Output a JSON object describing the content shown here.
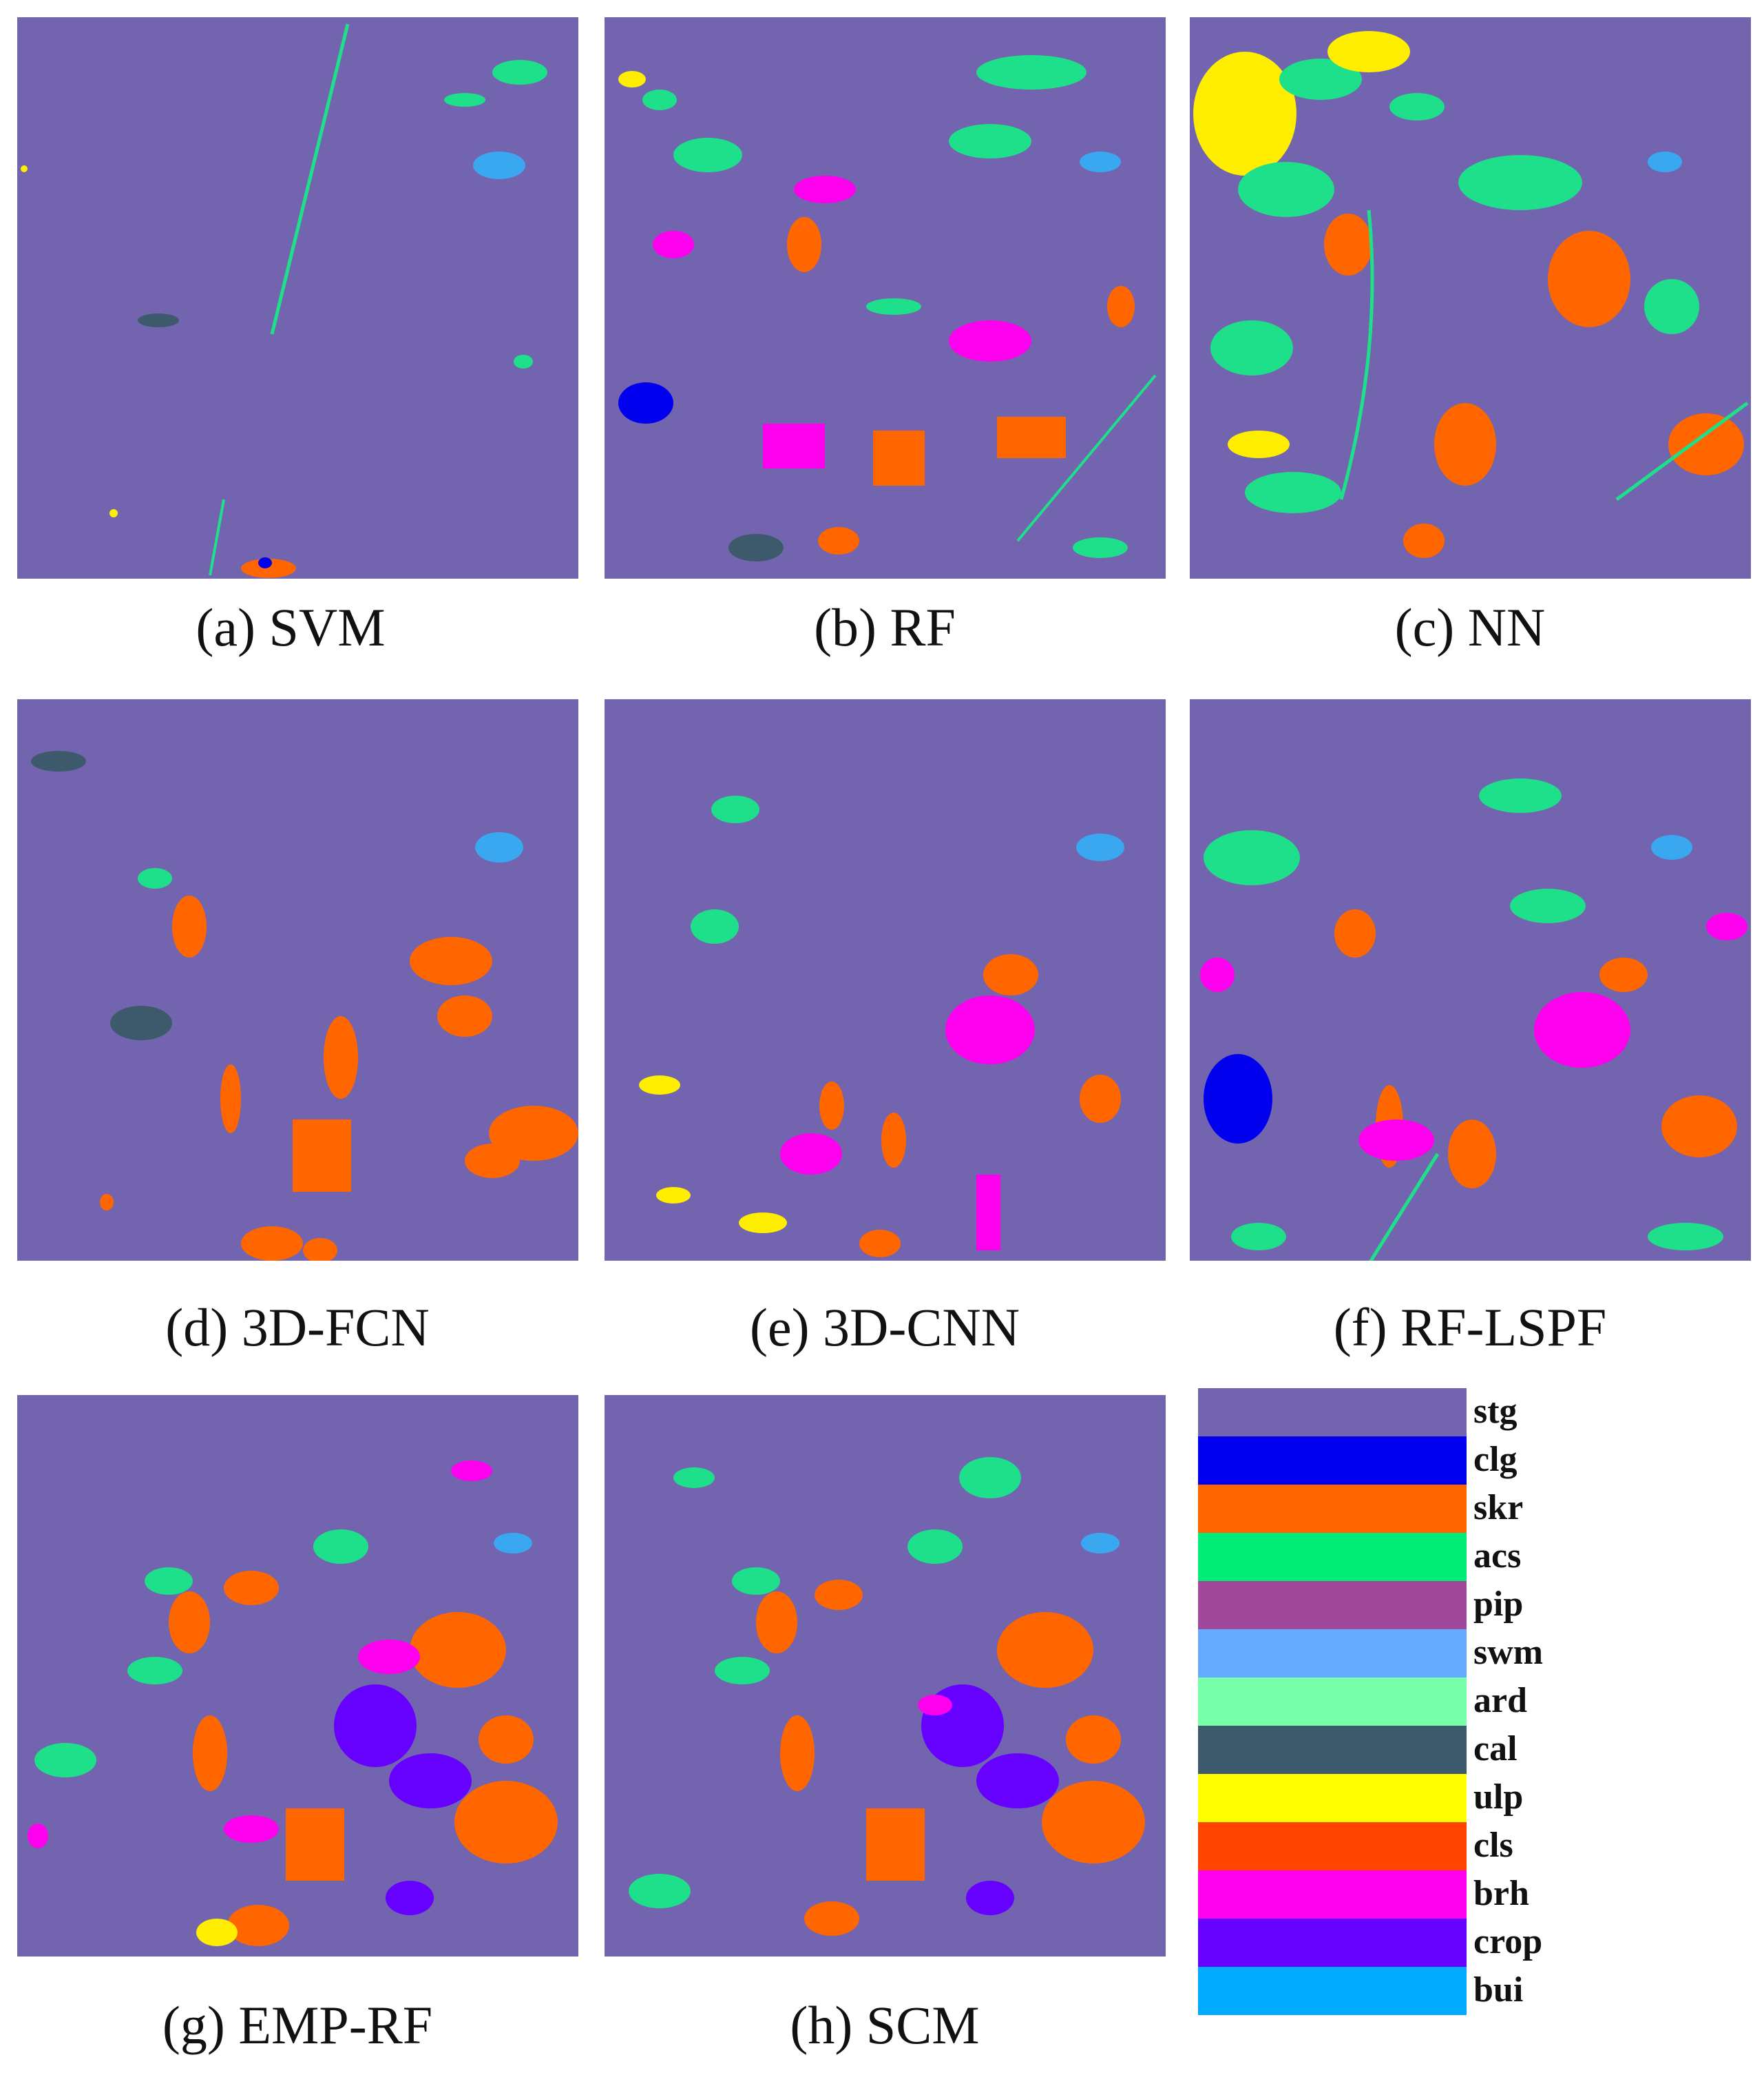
{
  "panels": [
    {
      "id": "a",
      "caption": "(a) SVM"
    },
    {
      "id": "b",
      "caption": "(b) RF"
    },
    {
      "id": "c",
      "caption": "(c) NN"
    },
    {
      "id": "d",
      "caption": "(d) 3D-FCN"
    },
    {
      "id": "e",
      "caption": "(e) 3D-CNN"
    },
    {
      "id": "f",
      "caption": "(f) RF-LSPF"
    },
    {
      "id": "g",
      "caption": "(g) EMP-RF"
    },
    {
      "id": "h",
      "caption": "(h) SCM"
    }
  ],
  "legend": [
    {
      "label": "stg",
      "color": "#7264ae"
    },
    {
      "label": "clg",
      "color": "#0000ee"
    },
    {
      "label": "skr",
      "color": "#ff6600"
    },
    {
      "label": "acs",
      "color": "#00ee77"
    },
    {
      "label": "pip",
      "color": "#a0489a"
    },
    {
      "label": "swm",
      "color": "#66aaff"
    },
    {
      "label": "ard",
      "color": "#77ffaa"
    },
    {
      "label": "cal",
      "color": "#3d5a6c"
    },
    {
      "label": "ulp",
      "color": "#ffff00"
    },
    {
      "label": "cls",
      "color": "#ff4400"
    },
    {
      "label": "brh",
      "color": "#ff00ee"
    },
    {
      "label": "crop",
      "color": "#6600ff"
    },
    {
      "label": "bui",
      "color": "#00aaff"
    }
  ]
}
